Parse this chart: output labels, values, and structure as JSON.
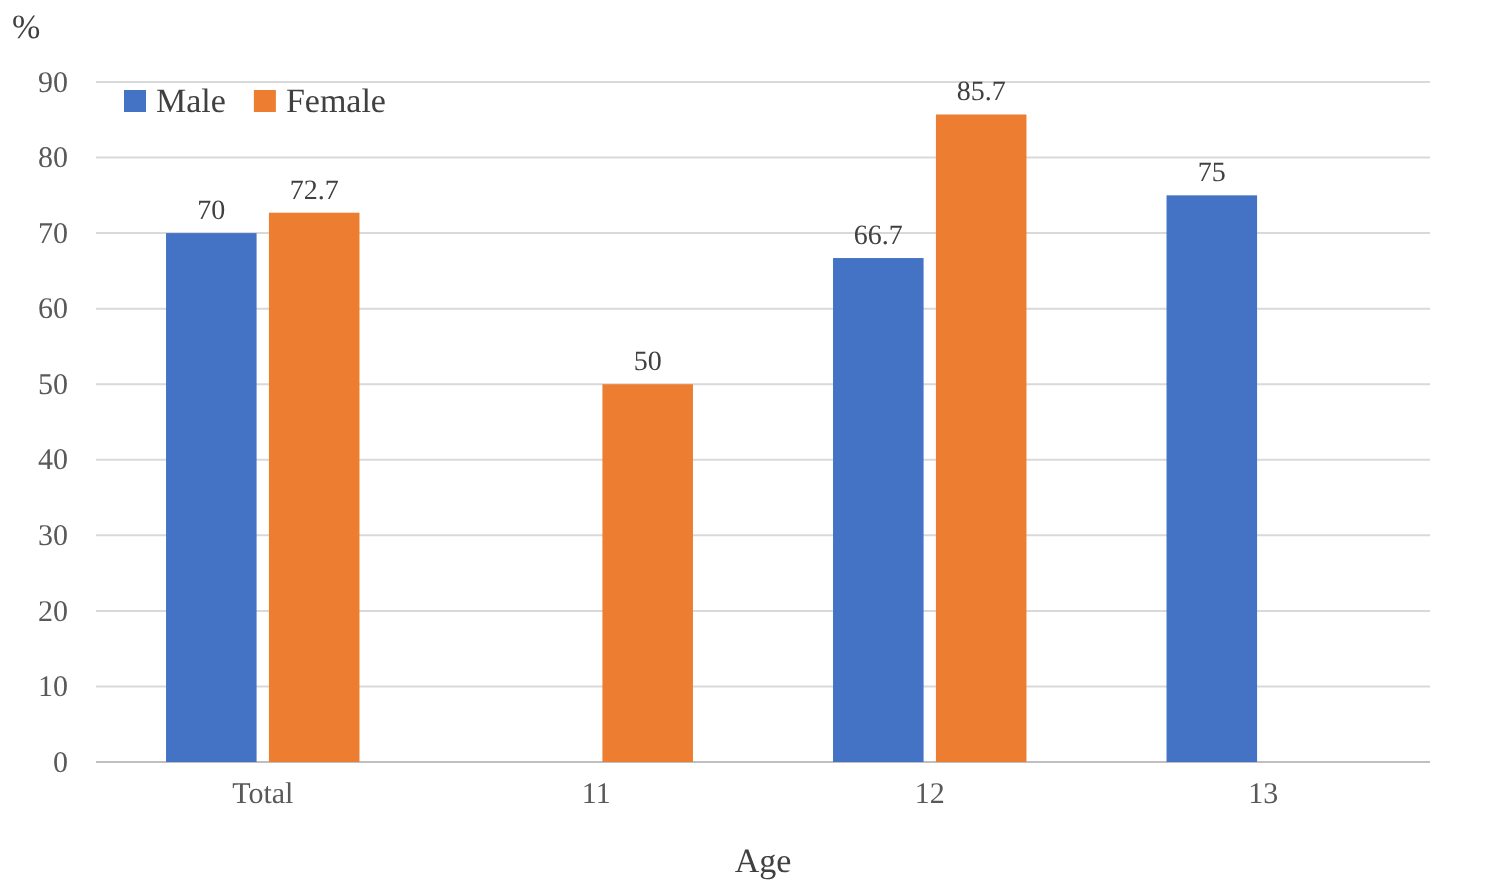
{
  "chart_data": {
    "type": "bar",
    "xlabel": "Age",
    "ylabel": "%",
    "categories": [
      "Total",
      "11",
      "12",
      "13"
    ],
    "series": [
      {
        "name": "Male",
        "color": "#4472c4",
        "values": [
          70,
          null,
          66.7,
          75
        ]
      },
      {
        "name": "Female",
        "color": "#ed7d31",
        "values": [
          72.7,
          50,
          85.7,
          null
        ]
      }
    ],
    "ylim": [
      0,
      90
    ],
    "yticks": [
      0,
      10,
      20,
      30,
      40,
      50,
      60,
      70,
      80,
      90
    ],
    "grid": "y",
    "legend": "top left",
    "data_labels": true
  }
}
